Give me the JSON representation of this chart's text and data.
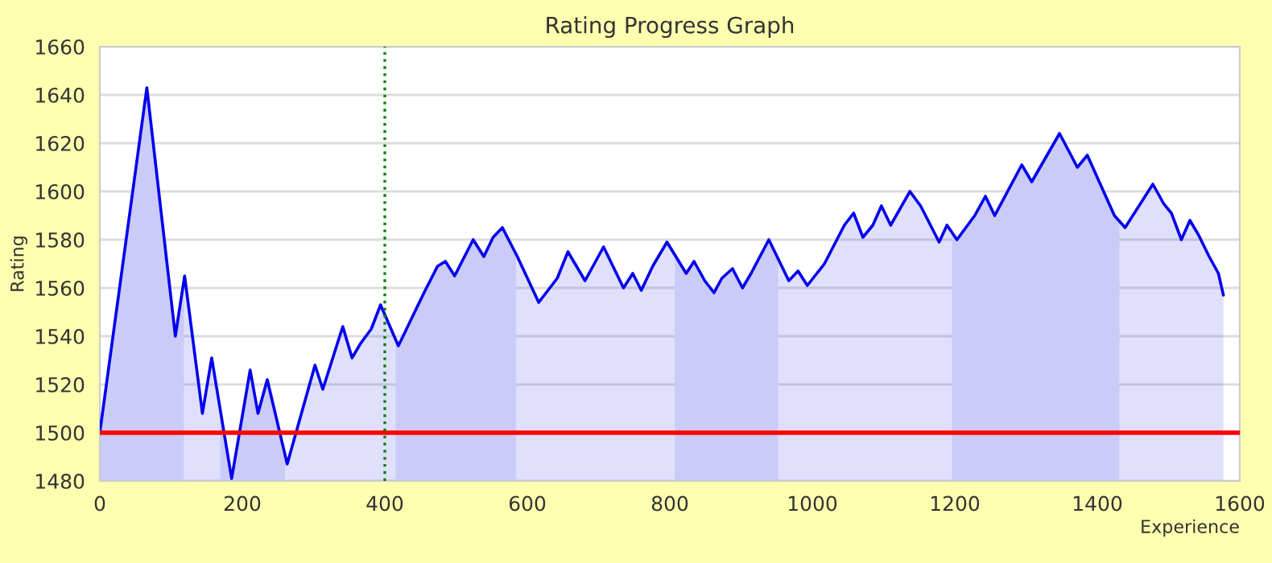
{
  "chart_data": {
    "type": "area",
    "title": "Rating Progress Graph",
    "xlabel": "Experience",
    "ylabel": "Rating",
    "x": [
      0,
      66,
      106,
      119,
      144,
      157,
      185,
      211,
      222,
      235,
      263,
      302,
      313,
      341,
      354,
      366,
      381,
      394,
      419,
      455,
      474,
      485,
      498,
      524,
      539,
      552,
      565,
      586,
      616,
      642,
      657,
      681,
      707,
      735,
      748,
      760,
      776,
      796,
      823,
      834,
      849,
      862,
      873,
      888,
      902,
      914,
      939,
      967,
      980,
      993,
      1017,
      1045,
      1058,
      1071,
      1085,
      1097,
      1110,
      1137,
      1152,
      1178,
      1189,
      1203,
      1228,
      1243,
      1256,
      1294,
      1308,
      1347,
      1372,
      1386,
      1424,
      1439,
      1478,
      1493,
      1504,
      1518,
      1530,
      1542,
      1557,
      1570,
      1577
    ],
    "series": [
      {
        "color": "#0000ee",
        "values": [
          1500,
          1643,
          1540,
          1565,
          1508,
          1531,
          1481,
          1526,
          1508,
          1522,
          1487,
          1528,
          1518,
          1544,
          1531,
          1537,
          1543,
          1553,
          1536,
          1558,
          1569,
          1571,
          1565,
          1580,
          1573,
          1581,
          1585,
          1573,
          1554,
          1564,
          1575,
          1563,
          1577,
          1560,
          1566,
          1559,
          1569,
          1579,
          1566,
          1571,
          1563,
          1558,
          1564,
          1568,
          1560,
          1566,
          1580,
          1563,
          1567,
          1561,
          1570,
          1586,
          1591,
          1581,
          1586,
          1594,
          1586,
          1600,
          1594,
          1579,
          1586,
          1580,
          1590,
          1598,
          1590,
          1611,
          1604,
          1624,
          1610,
          1615,
          1590,
          1585,
          1603,
          1595,
          1591,
          1580,
          1588,
          1582,
          1573,
          1566,
          1557
        ]
      }
    ],
    "xlim": [
      0,
      1600
    ],
    "xticks": [
      0,
      200,
      400,
      600,
      800,
      1000,
      1200,
      1400,
      1600
    ],
    "ylim": [
      1480,
      1660
    ],
    "yticks": [
      1480,
      1500,
      1520,
      1540,
      1560,
      1580,
      1600,
      1620,
      1640,
      1660
    ],
    "grid": "y",
    "legend": false,
    "marker": "none",
    "line_style": "solid",
    "ref_lines": [
      {
        "axis": "y",
        "value": 1500,
        "color": "#ff0000",
        "line_style": "solid"
      },
      {
        "axis": "x",
        "value": 400,
        "color": "#008000",
        "line_style": "dotted"
      }
    ],
    "bands": [
      {
        "axis": "x",
        "from": 0,
        "to": 118,
        "color": "#e8e8f9"
      },
      {
        "axis": "x",
        "from": 169,
        "to": 260,
        "color": "#e8e8f9"
      },
      {
        "axis": "x",
        "from": 415,
        "to": 584,
        "color": "#e8e8f9"
      },
      {
        "axis": "x",
        "from": 807,
        "to": 952,
        "color": "#e8e8f9"
      },
      {
        "axis": "x",
        "from": 1196,
        "to": 1431,
        "color": "#e8e8f9"
      }
    ]
  }
}
